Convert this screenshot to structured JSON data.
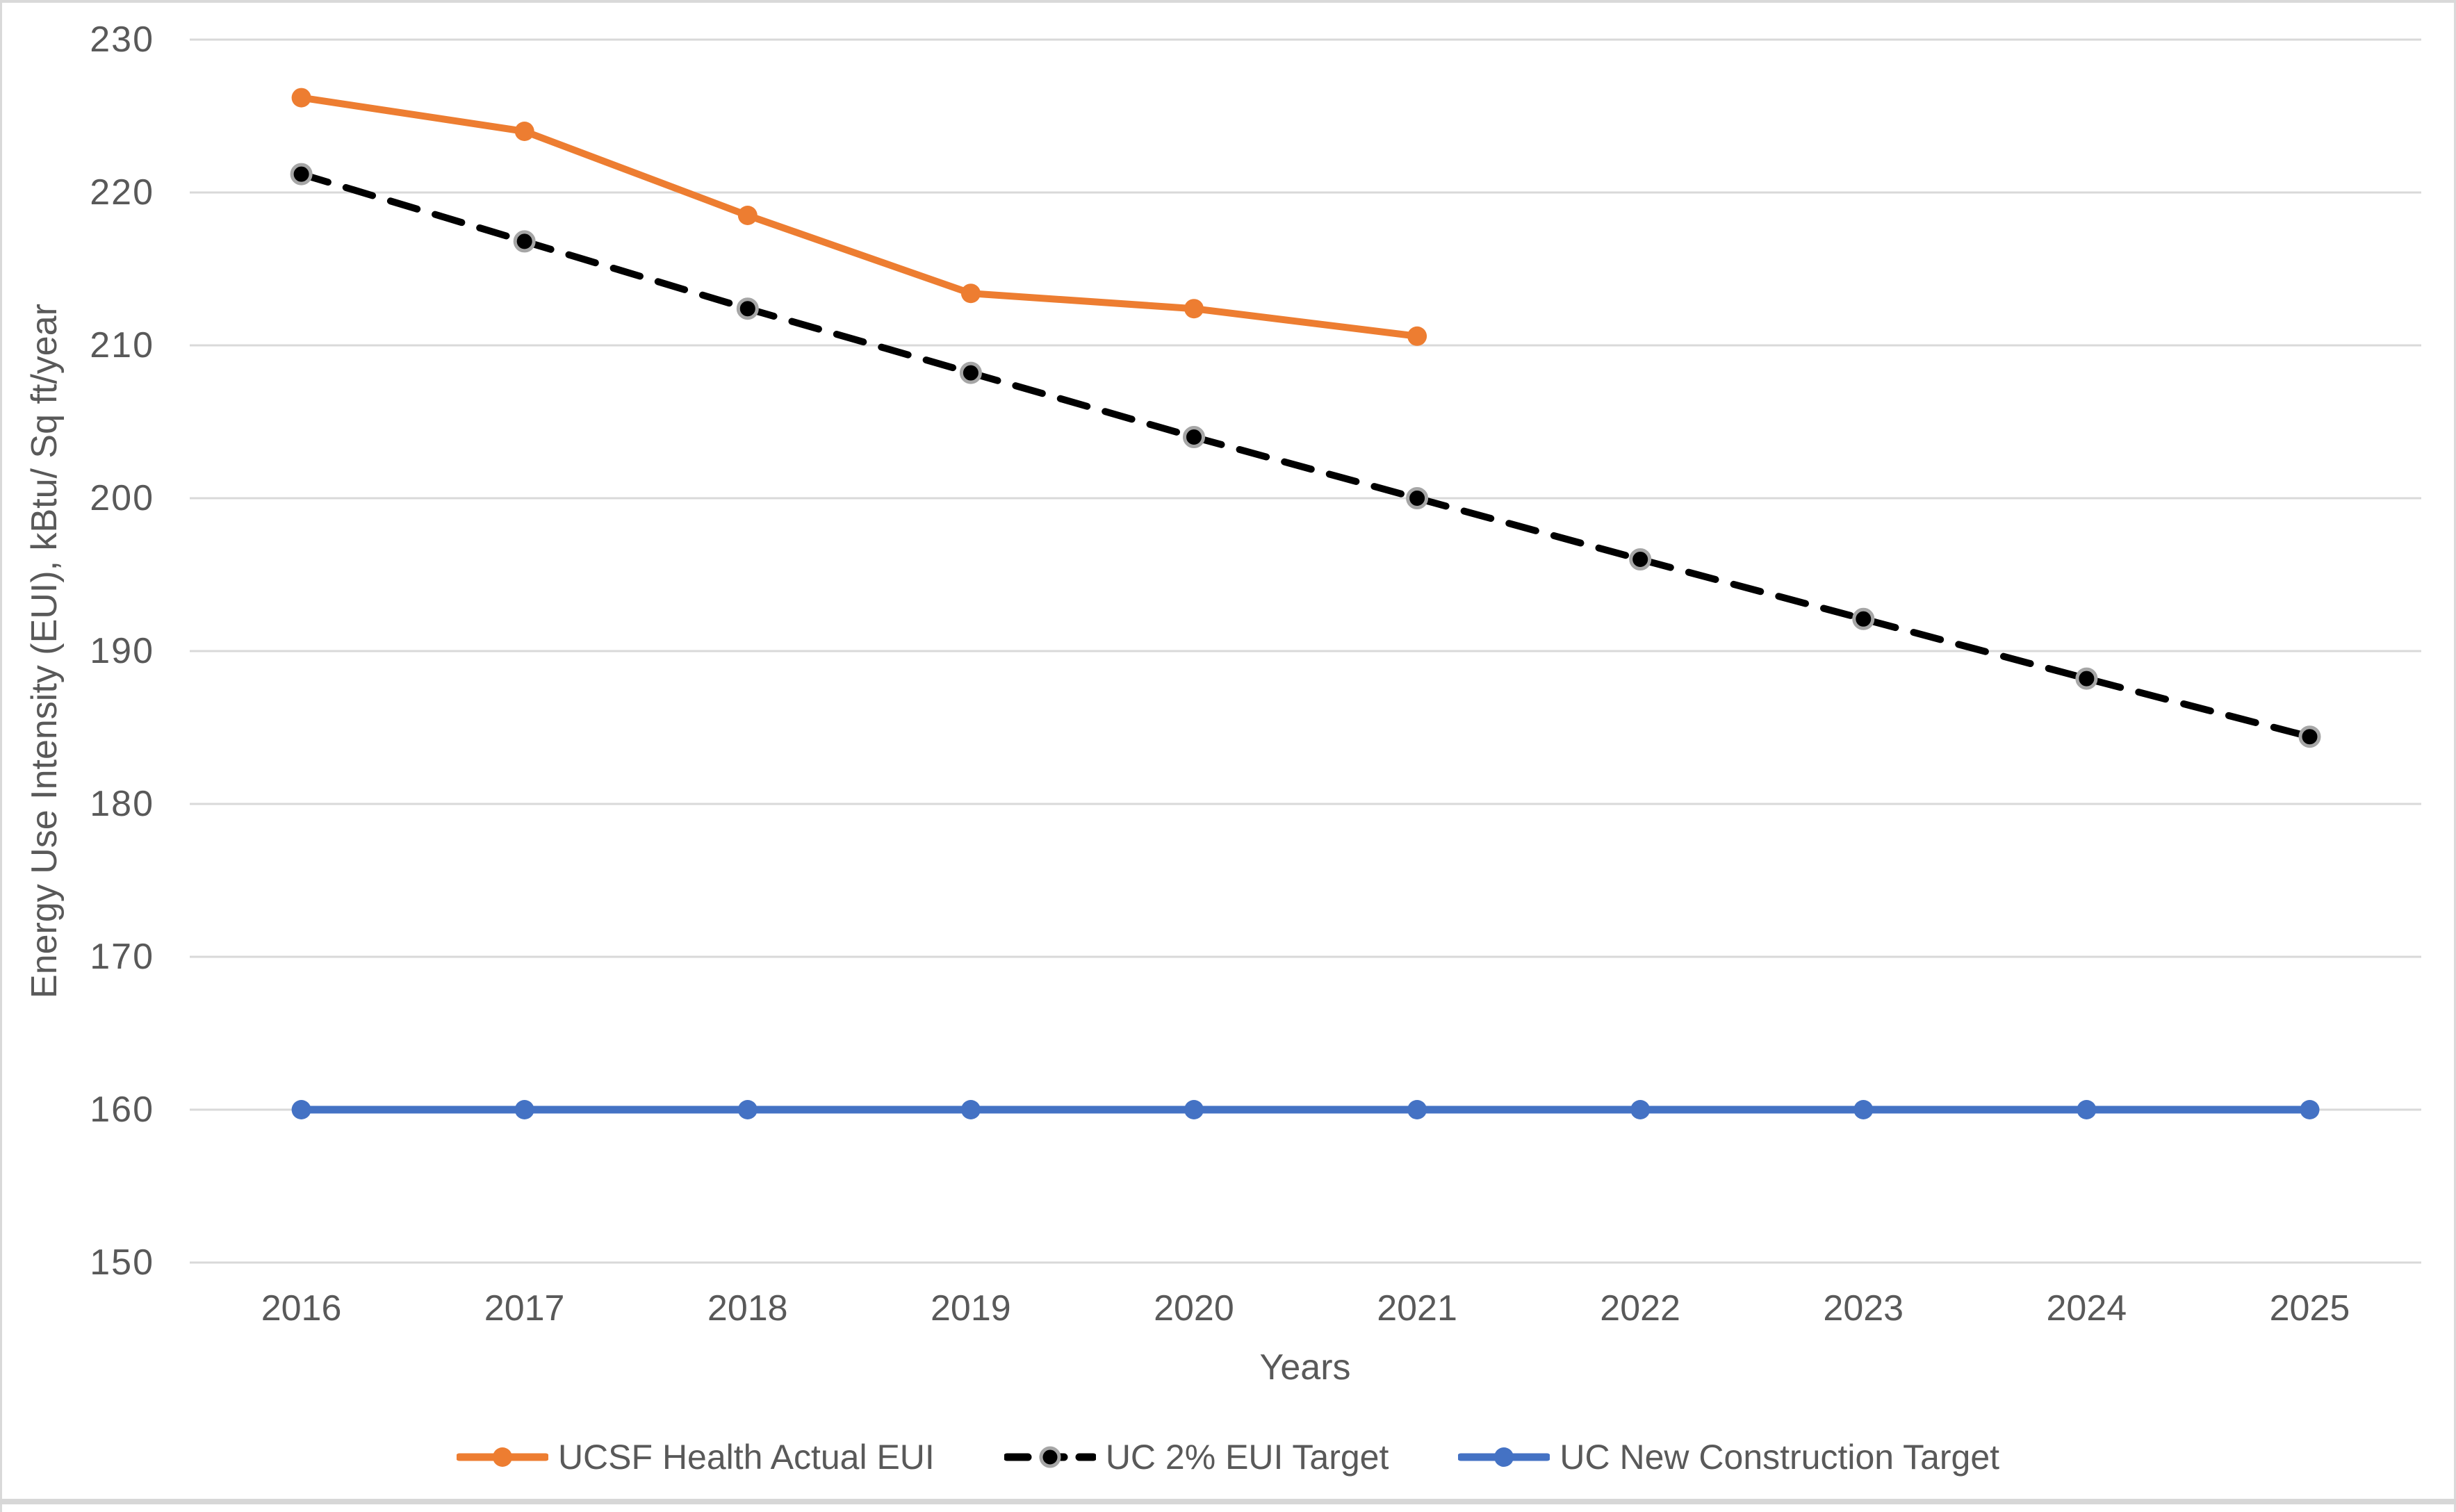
{
  "chart_data": {
    "type": "line",
    "title": "",
    "categories": [
      "2016",
      "2017",
      "2018",
      "2019",
      "2020",
      "2021",
      "2022",
      "2023",
      "2024",
      "2025"
    ],
    "series": [
      {
        "name": "UCSF Health Actual EUI",
        "color": "#ED7D31",
        "line_style": "solid",
        "marker": "circle",
        "values": [
          226.2,
          224.0,
          218.5,
          213.4,
          212.4,
          210.6
        ]
      },
      {
        "name": "UC 2% EUI Target",
        "color": "#000000",
        "line_style": "dashed",
        "marker": "circle-gray-ring",
        "values": [
          221.2,
          216.8,
          212.4,
          208.2,
          204.0,
          200.0,
          196.0,
          192.1,
          188.2,
          184.4
        ]
      },
      {
        "name": "UC New Construction Target",
        "color": "#4472C4",
        "line_style": "solid",
        "marker": "circle",
        "values": [
          160,
          160,
          160,
          160,
          160,
          160,
          160,
          160,
          160,
          160
        ]
      }
    ],
    "xlabel": "Years",
    "ylabel": "Energy Use Intensity (EUI), kBtu/ Sq ft/year",
    "ylim": [
      150,
      230
    ],
    "ytick_step": 10,
    "yticks": [
      "230",
      "220",
      "210",
      "200",
      "190",
      "180",
      "170",
      "160",
      "150"
    ],
    "grid": "horizontal-only",
    "legend_position": "bottom-center",
    "colors": {
      "gridline": "#D9D9D9",
      "axis_text": "#595959",
      "background": "#FFFFFF",
      "frame_edge": "#D9D9D9"
    }
  }
}
